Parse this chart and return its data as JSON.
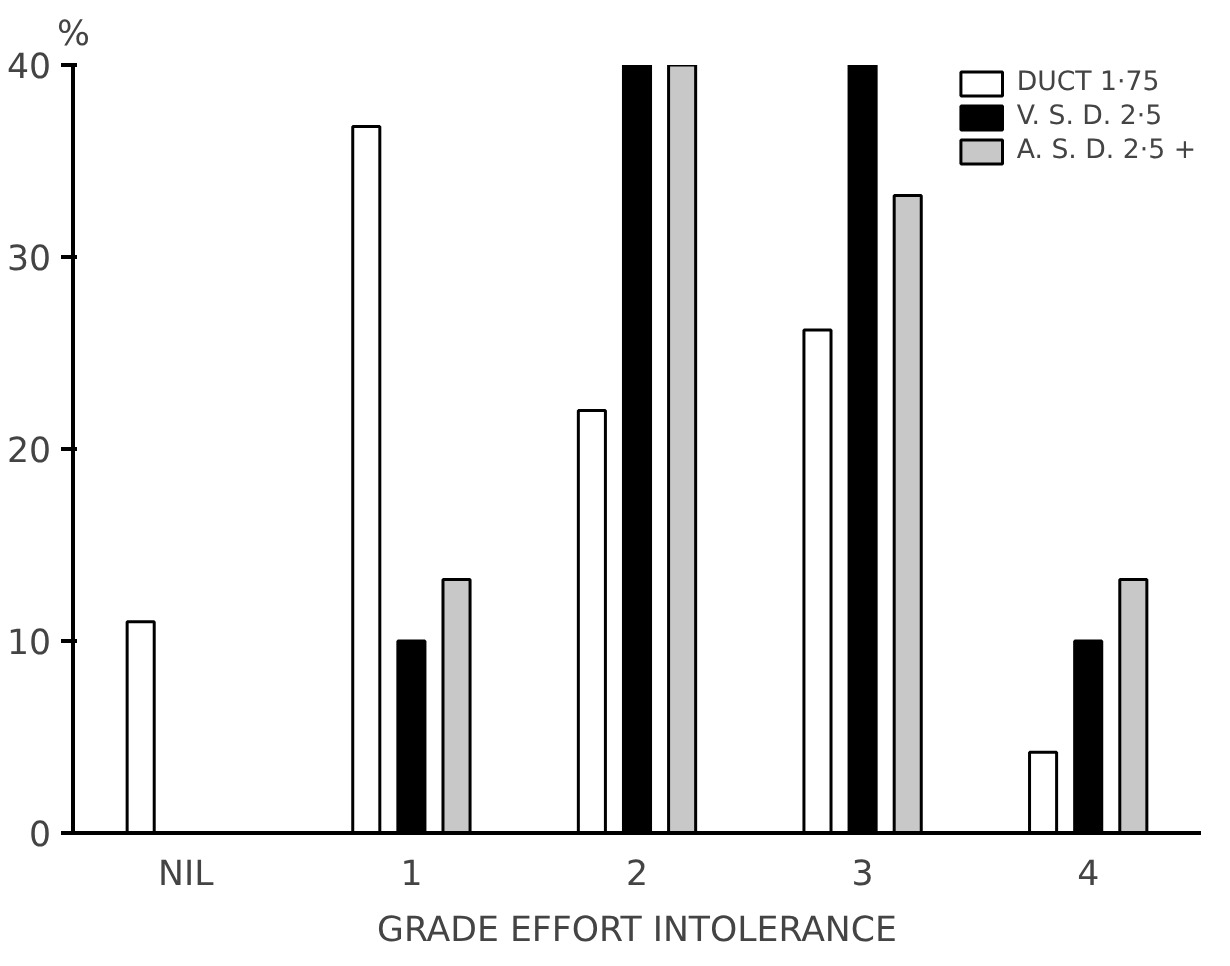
{
  "chart_data": {
    "type": "bar",
    "ylabel": "%",
    "xlabel": "GRADE EFFORT INTOLERANCE",
    "categories": [
      "NIL",
      "1",
      "2",
      "3",
      "4"
    ],
    "series": [
      {
        "name": "DUCT 1·75",
        "color": "#ffffff",
        "values": [
          11,
          36.8,
          22,
          26.2,
          4.2
        ]
      },
      {
        "name": "V. S. D. 2·5",
        "color": "#000000",
        "values": [
          null,
          10,
          40,
          40,
          10
        ]
      },
      {
        "name": "A. S. D. 2·5 +",
        "color": "#c8c8c8",
        "values": [
          null,
          13.2,
          40,
          33.2,
          13.2
        ]
      }
    ],
    "ylim": [
      0,
      40
    ],
    "yticks": [
      0,
      10,
      20,
      30,
      40
    ],
    "grid": false,
    "legend": "top right"
  }
}
